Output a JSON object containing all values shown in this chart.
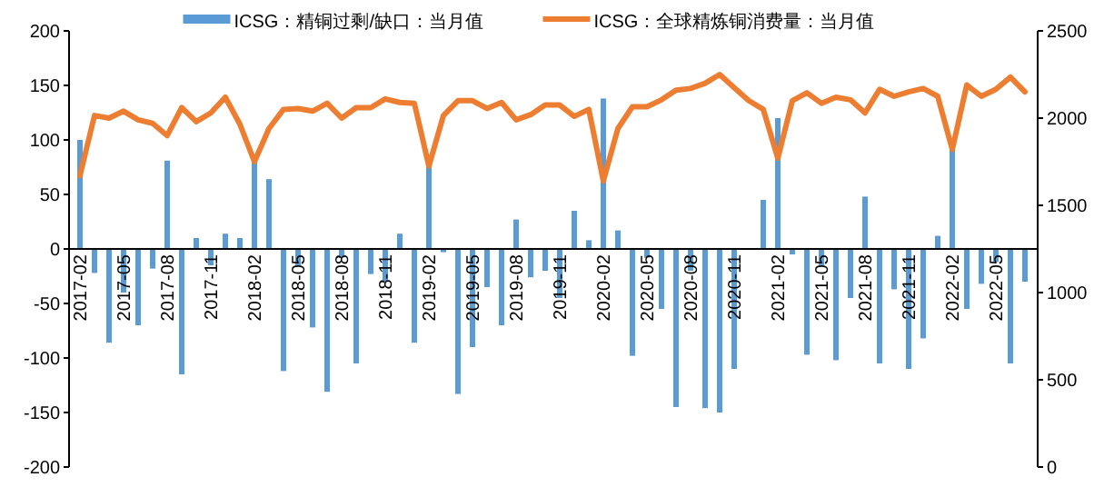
{
  "chart_data": {
    "type": "bar",
    "legend": "top",
    "grid": false,
    "categories": [
      "2017-02",
      null,
      null,
      "2017-05",
      null,
      null,
      "2017-08",
      null,
      null,
      "2017-11",
      null,
      null,
      "2018-02",
      null,
      null,
      "2018-05",
      null,
      null,
      "2018-08",
      null,
      null,
      "2018-11",
      null,
      null,
      "2019-02",
      null,
      null,
      "2019-05",
      null,
      null,
      "2019-08",
      null,
      null,
      "2019-11",
      null,
      null,
      "2020-02",
      null,
      null,
      "2020-05",
      null,
      null,
      "2020-08",
      null,
      null,
      "2020-11",
      null,
      null,
      "2021-02",
      null,
      null,
      "2021-05",
      null,
      null,
      "2021-08",
      null,
      null,
      "2021-11",
      null,
      null,
      "2022-02",
      null,
      null,
      "2022-05",
      null,
      null
    ],
    "ylim": [
      -200,
      200
    ],
    "yticks": [
      -200,
      -150,
      -100,
      -50,
      0,
      50,
      100,
      150,
      200
    ],
    "y2lim": [
      0,
      2500
    ],
    "y2ticks": [
      0,
      500,
      1000,
      1500,
      2000,
      2500
    ],
    "series": [
      {
        "name": "ICSG：精铜过剩/缺口：当月值",
        "color": "#5b9bd5",
        "values": [
          100,
          -22,
          -86,
          -40,
          -70,
          -18,
          81,
          -115,
          10,
          -15,
          14,
          10,
          80,
          64,
          -112,
          -15,
          -72,
          -131,
          -8,
          -105,
          -23,
          -30,
          14,
          -86,
          75,
          -3,
          -133,
          -90,
          -35,
          -70,
          27,
          -26,
          -20,
          -45,
          35,
          8,
          138,
          17,
          -98,
          -8,
          -55,
          -145,
          -20,
          -146,
          -150,
          -110,
          null,
          45,
          120,
          -5,
          -97,
          -15,
          -102,
          -45,
          48,
          -105,
          -37,
          -110,
          -82,
          12,
          92,
          -55,
          -32,
          -12,
          -105,
          -30
        ]
      },
      {
        "name": "ICSG：全球精炼铜消费量：当月值",
        "type": "line",
        "axis": "y2",
        "color": "#ed7d31",
        "values": [
          1670,
          2015,
          2000,
          2040,
          1990,
          1970,
          1900,
          2060,
          1980,
          2030,
          2120,
          1965,
          1750,
          1940,
          2050,
          2055,
          2040,
          2085,
          2000,
          2060,
          2060,
          2110,
          2090,
          2085,
          1725,
          2015,
          2100,
          2100,
          2055,
          2090,
          1990,
          2020,
          2075,
          2075,
          2010,
          2050,
          1640,
          1940,
          2065,
          2065,
          2105,
          2160,
          2170,
          2200,
          2250,
          2175,
          2100,
          2050,
          1770,
          2100,
          2145,
          2085,
          2120,
          2105,
          2030,
          2165,
          2125,
          2150,
          2170,
          2125,
          1820,
          2190,
          2125,
          2165,
          2235,
          2150
        ]
      }
    ]
  }
}
